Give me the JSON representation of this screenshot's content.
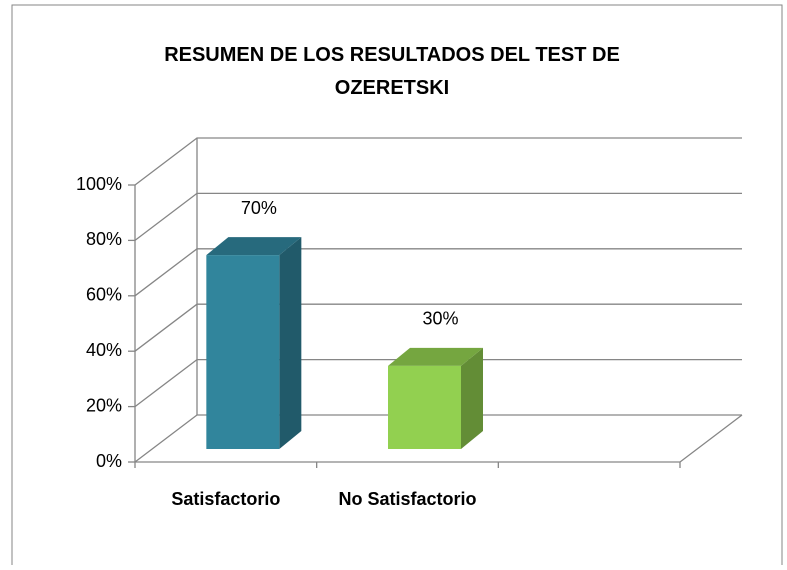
{
  "chart_data": {
    "type": "bar3d",
    "title": "RESUMEN DE LOS RESULTADOS DEL TEST DE OZERETSKI",
    "categories": [
      "Satisfactorio",
      "No Satisfactorio",
      null
    ],
    "values": [
      70,
      30,
      null
    ],
    "value_labels": [
      "70%",
      "30%",
      null
    ],
    "colors": [
      "#31859c",
      "#92d050"
    ],
    "ylim": [
      0,
      100
    ],
    "yticks": [
      {
        "value": 0,
        "label": "0%"
      },
      {
        "value": 20,
        "label": "20%"
      },
      {
        "value": 40,
        "label": "40%"
      },
      {
        "value": 60,
        "label": "60%"
      },
      {
        "value": 80,
        "label": "80%"
      },
      {
        "value": 100,
        "label": "100%"
      }
    ],
    "grid": true
  }
}
